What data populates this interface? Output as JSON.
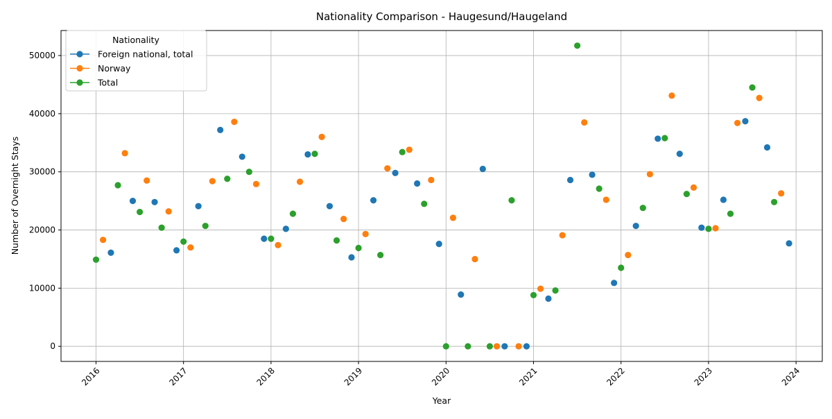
{
  "chart_data": {
    "type": "scatter",
    "title": "Nationality Comparison - Haugesund/Haugeland",
    "xlabel": "Year",
    "ylabel": "Number of Overnight Stays",
    "xlim": [
      2015.6,
      2024.3
    ],
    "ylim": [
      -2600,
      54300
    ],
    "x_ticks": [
      2016,
      2017,
      2018,
      2019,
      2020,
      2021,
      2022,
      2023,
      2024
    ],
    "y_ticks": [
      0,
      10000,
      20000,
      30000,
      40000,
      50000
    ],
    "grid": true,
    "legend": {
      "title": "Nationality",
      "placement": "top-left"
    },
    "series": [
      {
        "name": "Foreign national, total",
        "color": "#1f77b4",
        "points": [
          [
            2016.17,
            16100
          ],
          [
            2016.42,
            25000
          ],
          [
            2016.67,
            24800
          ],
          [
            2016.92,
            16500
          ],
          [
            2017.17,
            24100
          ],
          [
            2017.42,
            37200
          ],
          [
            2017.67,
            32600
          ],
          [
            2017.92,
            18500
          ],
          [
            2018.17,
            20200
          ],
          [
            2018.42,
            33000
          ],
          [
            2018.67,
            24100
          ],
          [
            2018.92,
            15300
          ],
          [
            2019.17,
            25100
          ],
          [
            2019.42,
            29800
          ],
          [
            2019.67,
            28000
          ],
          [
            2019.92,
            17600
          ],
          [
            2020.17,
            8900
          ],
          [
            2020.42,
            30500
          ],
          [
            2020.67,
            0
          ],
          [
            2020.92,
            0
          ],
          [
            2021.17,
            8200
          ],
          [
            2021.42,
            28600
          ],
          [
            2021.67,
            29500
          ],
          [
            2021.92,
            10900
          ],
          [
            2022.17,
            20700
          ],
          [
            2022.42,
            35700
          ],
          [
            2022.67,
            33100
          ],
          [
            2022.92,
            20400
          ],
          [
            2023.17,
            25200
          ],
          [
            2023.42,
            38700
          ],
          [
            2023.67,
            34200
          ],
          [
            2023.92,
            17700
          ]
        ]
      },
      {
        "name": "Norway",
        "color": "#ff7f0e",
        "points": [
          [
            2016.08,
            18300
          ],
          [
            2016.33,
            33200
          ],
          [
            2016.58,
            28500
          ],
          [
            2016.83,
            23200
          ],
          [
            2017.08,
            17000
          ],
          [
            2017.33,
            28400
          ],
          [
            2017.58,
            38600
          ],
          [
            2017.83,
            27900
          ],
          [
            2018.08,
            17400
          ],
          [
            2018.33,
            28300
          ],
          [
            2018.58,
            36000
          ],
          [
            2018.83,
            21900
          ],
          [
            2019.08,
            19300
          ],
          [
            2019.33,
            30600
          ],
          [
            2019.58,
            33800
          ],
          [
            2019.83,
            28600
          ],
          [
            2020.08,
            22100
          ],
          [
            2020.33,
            15000
          ],
          [
            2020.58,
            0
          ],
          [
            2020.83,
            0
          ],
          [
            2021.08,
            9900
          ],
          [
            2021.33,
            19100
          ],
          [
            2021.58,
            38500
          ],
          [
            2021.83,
            25200
          ],
          [
            2022.08,
            15700
          ],
          [
            2022.33,
            29600
          ],
          [
            2022.58,
            43100
          ],
          [
            2022.83,
            27300
          ],
          [
            2023.08,
            20300
          ],
          [
            2023.33,
            38400
          ],
          [
            2023.58,
            42700
          ],
          [
            2023.83,
            26300
          ]
        ]
      },
      {
        "name": "Total",
        "color": "#2ca02c",
        "points": [
          [
            2016.0,
            14900
          ],
          [
            2016.25,
            27700
          ],
          [
            2016.5,
            23100
          ],
          [
            2016.75,
            20400
          ],
          [
            2017.0,
            18000
          ],
          [
            2017.25,
            20700
          ],
          [
            2017.5,
            28800
          ],
          [
            2017.75,
            30000
          ],
          [
            2018.0,
            18500
          ],
          [
            2018.25,
            22800
          ],
          [
            2018.5,
            33100
          ],
          [
            2018.75,
            18200
          ],
          [
            2019.0,
            16900
          ],
          [
            2019.25,
            15700
          ],
          [
            2019.5,
            33400
          ],
          [
            2019.75,
            24500
          ],
          [
            2020.0,
            0
          ],
          [
            2020.25,
            0
          ],
          [
            2020.5,
            0
          ],
          [
            2020.75,
            25100
          ],
          [
            2021.0,
            8800
          ],
          [
            2021.25,
            9600
          ],
          [
            2021.5,
            51700
          ],
          [
            2021.75,
            27100
          ],
          [
            2022.0,
            13500
          ],
          [
            2022.25,
            23800
          ],
          [
            2022.5,
            35800
          ],
          [
            2022.75,
            26200
          ],
          [
            2023.0,
            20200
          ],
          [
            2023.25,
            22800
          ],
          [
            2023.5,
            44500
          ],
          [
            2023.75,
            24800
          ]
        ]
      }
    ]
  }
}
